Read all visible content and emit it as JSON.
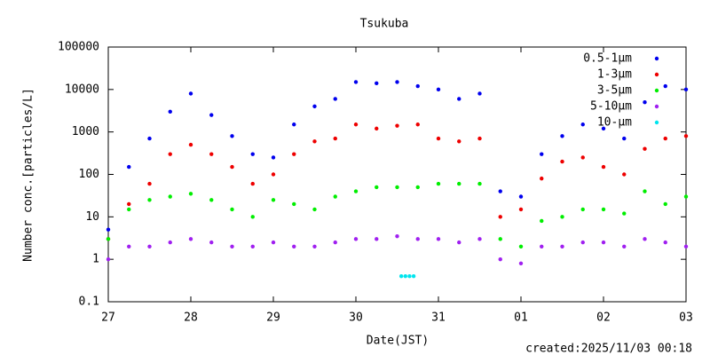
{
  "chart_data": {
    "type": "scatter",
    "title": "Tsukuba",
    "ylabel": "Number conc.[particles/L]",
    "xlabel": "Date(JST)",
    "annotation": "created:2025/11/03 00:18",
    "log_y": true,
    "legend": "top-right",
    "xlim": [
      0,
      7
    ],
    "xticks": [
      {
        "value": 0,
        "label": "27"
      },
      {
        "value": 1,
        "label": "28"
      },
      {
        "value": 2,
        "label": "29"
      },
      {
        "value": 3,
        "label": "30"
      },
      {
        "value": 4,
        "label": "31"
      },
      {
        "value": 5,
        "label": "01"
      },
      {
        "value": 6,
        "label": "02"
      },
      {
        "value": 7,
        "label": "03"
      }
    ],
    "ylim": [
      0.1,
      100000
    ],
    "yticks": [
      0.1,
      1,
      10,
      100,
      1000,
      10000,
      100000
    ],
    "x": [
      0,
      0.25,
      0.5,
      0.75,
      1,
      1.25,
      1.5,
      1.75,
      2,
      2.25,
      2.5,
      2.75,
      3,
      3.25,
      3.5,
      3.75,
      4,
      4.25,
      4.5,
      4.75,
      5,
      5.25,
      5.5,
      5.75,
      6,
      6.25,
      6.5,
      6.75,
      7
    ],
    "series": [
      {
        "name": "0.5-1μm",
        "color": "#0000ee",
        "values": [
          5,
          150,
          700,
          3000,
          8000,
          2500,
          800,
          300,
          250,
          1500,
          4000,
          6000,
          15000,
          14000,
          15000,
          12000,
          10000,
          6000,
          8000,
          40,
          30,
          300,
          800,
          1500,
          1200,
          700,
          5000,
          12000,
          10000
        ]
      },
      {
        "name": "1-3μm",
        "color": "#ee0000",
        "values": [
          3,
          20,
          60,
          300,
          500,
          300,
          150,
          60,
          100,
          300,
          600,
          700,
          1500,
          1200,
          1400,
          1500,
          700,
          600,
          700,
          10,
          15,
          80,
          200,
          250,
          150,
          100,
          400,
          700,
          800
        ]
      },
      {
        "name": "3-5μm",
        "color": "#00ee00",
        "values": [
          3,
          15,
          25,
          30,
          35,
          25,
          15,
          10,
          25,
          20,
          15,
          30,
          40,
          50,
          50,
          50,
          60,
          60,
          60,
          3,
          2,
          8,
          10,
          15,
          15,
          12,
          40,
          20,
          30
        ]
      },
      {
        "name": "5-10μm",
        "color": "#a020f0",
        "values": [
          1,
          2,
          2,
          2.5,
          3,
          2.5,
          2,
          2,
          2.5,
          2,
          2,
          2.5,
          3,
          3,
          3.5,
          3,
          3,
          2.5,
          3,
          1,
          0.8,
          2,
          2,
          2.5,
          2.5,
          2,
          3,
          2.5,
          2
        ]
      },
      {
        "name": "10-μm",
        "color": "#00e5ee",
        "x": [
          3.55,
          3.6,
          3.65,
          3.7
        ],
        "values": [
          0.4,
          0.4,
          0.4,
          0.4
        ]
      }
    ]
  }
}
